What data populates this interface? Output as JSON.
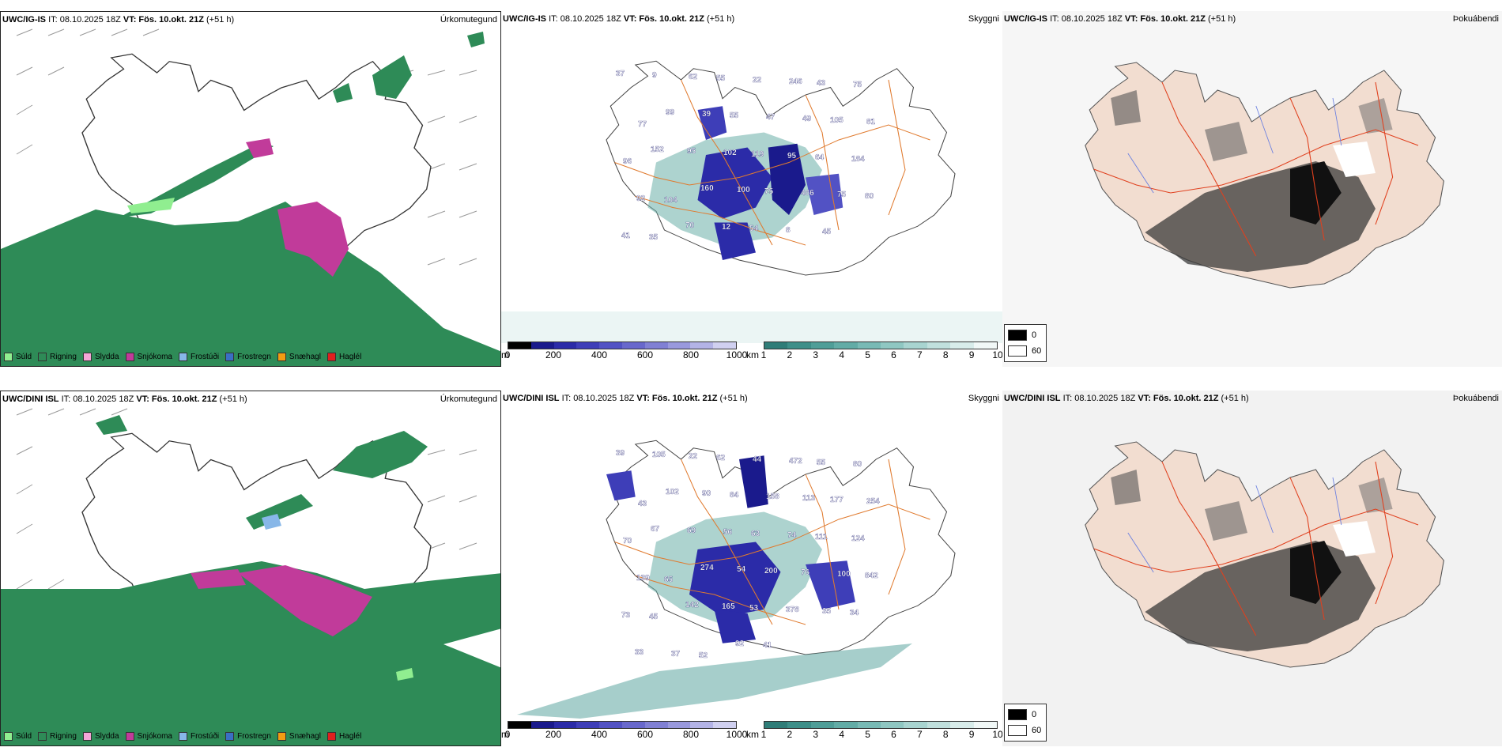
{
  "rows": [
    {
      "model": "UWC/IG-IS",
      "it_label": "IT: 08.10.2025 18Z",
      "vt_label": "VT: Fös. 10.okt. 21Z",
      "lead": "(+51 h)",
      "precip_title": "Úrkomutegund",
      "cloud_title": "Skyggni",
      "fog_title": "Þokuábendi",
      "cloud_numbers": [
        "37",
        "9",
        "62",
        "55",
        "22",
        "246",
        "43",
        "75",
        "77",
        "99",
        "39",
        "55",
        "47",
        "49",
        "105",
        "81",
        "96",
        "152",
        "95",
        "102",
        "119",
        "95",
        "64",
        "184",
        "92",
        "104",
        "160",
        "100",
        "75",
        "486",
        "75",
        "80",
        "41",
        "35",
        "70",
        "12",
        "54",
        "8",
        "45"
      ]
    },
    {
      "model": "UWC/DINI ISL",
      "it_label": "IT: 08.10.2025 18Z",
      "vt_label": "VT: Fös. 10.okt. 21Z",
      "lead": "(+51 h)",
      "precip_title": "Úrkomutegund",
      "cloud_title": "Skyggni",
      "fog_title": "Þokuábendi",
      "cloud_numbers": [
        "39",
        "105",
        "22",
        "62",
        "44",
        "472",
        "55",
        "80",
        "43",
        "102",
        "90",
        "84",
        "158",
        "113",
        "177",
        "254",
        "70",
        "67",
        "69",
        "56",
        "63",
        "74",
        "111",
        "124",
        "139",
        "65",
        "274",
        "54",
        "200",
        "76",
        "100",
        "842",
        "73",
        "45",
        "142",
        "165",
        "53",
        "378",
        "35",
        "34",
        "33",
        "37",
        "52",
        "92",
        "41"
      ]
    }
  ],
  "precip_legend": [
    {
      "label": "Súld",
      "color": "#90ee90"
    },
    {
      "label": "Rigning",
      "color": "#2e8b57"
    },
    {
      "label": "Slydda",
      "color": "#f4a6d7"
    },
    {
      "label": "Snjókoma",
      "color": "#c13b9a"
    },
    {
      "label": "Frostúði",
      "color": "#87b7e8"
    },
    {
      "label": "Frostregn",
      "color": "#3a6fc4"
    },
    {
      "label": "Snæhagl",
      "color": "#f39c12"
    },
    {
      "label": "Haglél",
      "color": "#e0201e"
    }
  ],
  "cloud_base_bar": {
    "unit": "m",
    "ticks": [
      "0",
      "200",
      "400",
      "600",
      "800",
      "1000"
    ],
    "colors": [
      "#000000",
      "#1a1a8c",
      "#2b2ba8",
      "#3e3eb8",
      "#5252c4",
      "#6868cc",
      "#8080d4",
      "#9999dd",
      "#b3b3e6",
      "#d0d0f0"
    ]
  },
  "visibility_bar": {
    "unit": "km",
    "ticks": [
      "1",
      "2",
      "3",
      "4",
      "5",
      "6",
      "7",
      "8",
      "9",
      "10"
    ],
    "colors": [
      "#2f7d78",
      "#3d8f89",
      "#4f9e98",
      "#62aca6",
      "#78bab5",
      "#8fc7c2",
      "#a8d4d0",
      "#c0e0dd",
      "#d8ecea",
      "#f1f8f7"
    ]
  },
  "fog_legend": [
    {
      "label": "0",
      "color": "#000000"
    },
    {
      "label": "60",
      "color": "#ffffff"
    }
  ]
}
